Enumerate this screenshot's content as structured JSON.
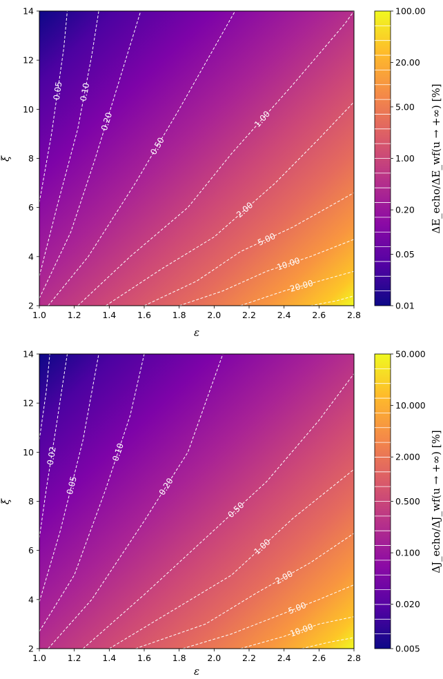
{
  "chart_data": [
    {
      "type": "contourf",
      "colormap": "plasma",
      "xlabel": "ε",
      "ylabel": "ξ",
      "xlim": [
        1.0,
        2.8
      ],
      "ylim": [
        2,
        14
      ],
      "x_ticks": [
        "1.0",
        "1.2",
        "1.4",
        "1.6",
        "1.8",
        "2.0",
        "2.2",
        "2.4",
        "2.6",
        "2.8"
      ],
      "y_ticks": [
        "2",
        "4",
        "6",
        "8",
        "10",
        "12",
        "14"
      ],
      "colorbar": {
        "label": "ΔE_echo/ΔE_wf(u → +∞) [%]",
        "scale": "log",
        "range": [
          0.01,
          100.0
        ],
        "tick_labels": [
          "100.00",
          "20.00",
          "5.00",
          "1.00",
          "0.20",
          "0.05",
          "0.01"
        ]
      },
      "contour_levels": [
        {
          "value": 0.05,
          "label": "0.05",
          "line": [
            [
              1.0,
              6.2
            ],
            [
              1.07,
              9.0
            ],
            [
              1.14,
              12.5
            ],
            [
              1.16,
              14.0
            ]
          ]
        },
        {
          "value": 0.1,
          "label": "0.10",
          "line": [
            [
              1.0,
              3.2
            ],
            [
              1.1,
              6.0
            ],
            [
              1.22,
              9.2
            ],
            [
              1.3,
              12.2
            ],
            [
              1.34,
              14.0
            ]
          ]
        },
        {
          "value": 0.2,
          "label": "0.20",
          "line": [
            [
              1.0,
              2.3
            ],
            [
              1.18,
              5.0
            ],
            [
              1.32,
              8.0
            ],
            [
              1.45,
              11.0
            ],
            [
              1.58,
              14.0
            ]
          ]
        },
        {
          "value": 0.5,
          "label": "0.50",
          "line": [
            [
              1.05,
              2.0
            ],
            [
              1.28,
              4.0
            ],
            [
              1.55,
              7.0
            ],
            [
              1.8,
              10.0
            ],
            [
              2.0,
              12.5
            ],
            [
              2.12,
              14.0
            ]
          ]
        },
        {
          "value": 1.0,
          "label": "1.00",
          "line": [
            [
              1.22,
              2.0
            ],
            [
              1.52,
              4.0
            ],
            [
              1.85,
              6.0
            ],
            [
              2.1,
              8.2
            ],
            [
              2.45,
              11.0
            ],
            [
              2.75,
              13.5
            ],
            [
              2.8,
              14.0
            ]
          ]
        },
        {
          "value": 2.0,
          "label": "2.00",
          "line": [
            [
              1.38,
              2.0
            ],
            [
              1.7,
              3.5
            ],
            [
              2.0,
              4.8
            ],
            [
              2.35,
              7.0
            ],
            [
              2.6,
              8.8
            ],
            [
              2.8,
              10.3
            ]
          ]
        },
        {
          "value": 5.0,
          "label": "5.00",
          "line": [
            [
              1.6,
              2.0
            ],
            [
              1.9,
              3.0
            ],
            [
              2.15,
              4.2
            ],
            [
              2.45,
              5.2
            ],
            [
              2.8,
              6.6
            ]
          ]
        },
        {
          "value": 10.0,
          "label": "10.00",
          "line": [
            [
              1.8,
              2.0
            ],
            [
              2.05,
              2.6
            ],
            [
              2.3,
              3.4
            ],
            [
              2.55,
              4.0
            ],
            [
              2.8,
              4.7
            ]
          ]
        },
        {
          "value": 20.0,
          "label": "20.00",
          "line": [
            [
              2.15,
              2.0
            ],
            [
              2.4,
              2.6
            ],
            [
              2.6,
              3.0
            ],
            [
              2.8,
              3.4
            ]
          ]
        },
        {
          "value": 50.0,
          "label": "",
          "line": [
            [
              2.55,
              2.0
            ],
            [
              2.7,
              2.2
            ],
            [
              2.8,
              2.4
            ]
          ]
        }
      ]
    },
    {
      "type": "contourf",
      "colormap": "plasma",
      "xlabel": "ε",
      "ylabel": "ξ",
      "xlim": [
        1.0,
        2.8
      ],
      "ylim": [
        2,
        14
      ],
      "x_ticks": [
        "1.0",
        "1.2",
        "1.4",
        "1.6",
        "1.8",
        "2.0",
        "2.2",
        "2.4",
        "2.6",
        "2.8"
      ],
      "y_ticks": [
        "2",
        "4",
        "6",
        "8",
        "10",
        "12",
        "14"
      ],
      "colorbar": {
        "label": "ΔJ_echo/ΔJ_wf(u → +∞) [%]",
        "scale": "log",
        "range": [
          0.005,
          50.0
        ],
        "tick_labels": [
          "50.000",
          "10.000",
          "2.000",
          "0.500",
          "0.100",
          "0.020",
          "0.005"
        ]
      },
      "contour_levels": [
        {
          "value": 0.01,
          "label": "",
          "line": [
            [
              1.0,
              10.5
            ],
            [
              1.04,
              12.5
            ],
            [
              1.06,
              14.0
            ]
          ]
        },
        {
          "value": 0.02,
          "label": "0.02",
          "line": [
            [
              1.0,
              6.5
            ],
            [
              1.04,
              8.5
            ],
            [
              1.1,
              11.2
            ],
            [
              1.16,
              14.0
            ]
          ]
        },
        {
          "value": 0.05,
          "label": "0.05",
          "line": [
            [
              1.0,
              3.9
            ],
            [
              1.12,
              6.8
            ],
            [
              1.25,
              10.5
            ],
            [
              1.34,
              14.0
            ]
          ]
        },
        {
          "value": 0.1,
          "label": "0.10",
          "line": [
            [
              1.0,
              2.7
            ],
            [
              1.2,
              5.0
            ],
            [
              1.38,
              8.5
            ],
            [
              1.52,
              11.5
            ],
            [
              1.6,
              14.0
            ]
          ]
        },
        {
          "value": 0.2,
          "label": "0.20",
          "line": [
            [
              1.05,
              2.0
            ],
            [
              1.3,
              4.0
            ],
            [
              1.6,
              7.2
            ],
            [
              1.85,
              10.0
            ],
            [
              2.05,
              14.0
            ]
          ]
        },
        {
          "value": 0.5,
          "label": "0.50",
          "line": [
            [
              1.25,
              2.0
            ],
            [
              1.6,
              4.2
            ],
            [
              1.95,
              6.5
            ],
            [
              2.3,
              8.8
            ],
            [
              2.6,
              11.3
            ],
            [
              2.8,
              13.2
            ]
          ]
        },
        {
          "value": 1.0,
          "label": "1.00",
          "line": [
            [
              1.4,
              2.0
            ],
            [
              1.75,
              3.5
            ],
            [
              2.1,
              5.0
            ],
            [
              2.45,
              7.3
            ],
            [
              2.8,
              9.3
            ]
          ]
        },
        {
          "value": 2.0,
          "label": "2.00",
          "line": [
            [
              1.55,
              2.0
            ],
            [
              1.95,
              3.0
            ],
            [
              2.25,
              4.3
            ],
            [
              2.55,
              5.5
            ],
            [
              2.8,
              6.7
            ]
          ]
        },
        {
          "value": 5.0,
          "label": "5.00",
          "line": [
            [
              1.82,
              2.0
            ],
            [
              2.1,
              2.6
            ],
            [
              2.35,
              3.3
            ],
            [
              2.6,
              4.0
            ],
            [
              2.8,
              4.6
            ]
          ]
        },
        {
          "value": 10.0,
          "label": "10.00",
          "line": [
            [
              2.15,
              2.0
            ],
            [
              2.4,
              2.5
            ],
            [
              2.6,
              3.0
            ],
            [
              2.8,
              3.3
            ]
          ]
        },
        {
          "value": 20.0,
          "label": "",
          "line": [
            [
              2.5,
              2.0
            ],
            [
              2.65,
              2.25
            ],
            [
              2.8,
              2.45
            ]
          ]
        }
      ]
    }
  ]
}
